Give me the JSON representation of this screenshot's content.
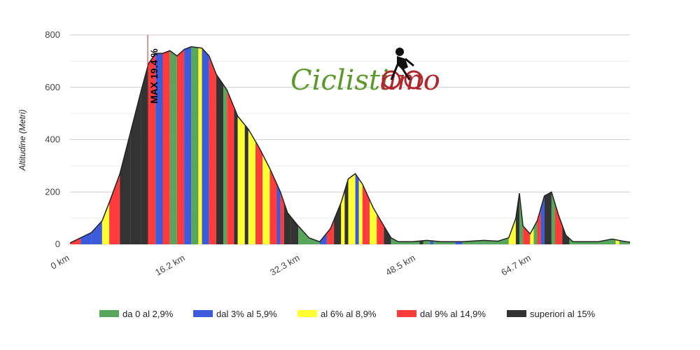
{
  "chart_data": {
    "type": "area",
    "title": "",
    "ylabel": "Altitudine (Metri)",
    "xlabel": "",
    "xlim": [
      0,
      78.5
    ],
    "ylim": [
      0,
      800
    ],
    "y_ticks": [
      0,
      200,
      400,
      600,
      800
    ],
    "x_ticks": [
      {
        "value": 0,
        "label": "0 km"
      },
      {
        "value": 16.2,
        "label": "16.2 km"
      },
      {
        "value": 32.3,
        "label": "32.3 km"
      },
      {
        "value": 48.5,
        "label": "48.5 km"
      },
      {
        "value": 64.7,
        "label": "64.7 km"
      }
    ],
    "grid": true,
    "legend_position": "bottom",
    "legend": [
      {
        "label": "da 0 al 2,9%",
        "color": "#58a55c"
      },
      {
        "label": "dal 3% al 5,9%",
        "color": "#3b5bdb"
      },
      {
        "label": "al 6% al 8,9%",
        "color": "#ffff33"
      },
      {
        "label": "dal 9% al 14,9%",
        "color": "#ff3b3b"
      },
      {
        "label": "superiori al 15%",
        "color": "#333333"
      }
    ],
    "annotation": {
      "label": "MAX 19.4 %",
      "x": 10.9
    },
    "profile": [
      [
        0,
        5
      ],
      [
        1.5,
        25
      ],
      [
        3,
        45
      ],
      [
        4.5,
        90
      ],
      [
        5.5,
        160
      ],
      [
        7,
        270
      ],
      [
        8.5,
        430
      ],
      [
        10,
        590
      ],
      [
        11,
        690
      ],
      [
        12,
        730
      ],
      [
        13,
        730
      ],
      [
        14,
        740
      ],
      [
        15,
        720
      ],
      [
        16,
        745
      ],
      [
        17,
        755
      ],
      [
        18.5,
        750
      ],
      [
        19.5,
        720
      ],
      [
        20.5,
        650
      ],
      [
        22,
        590
      ],
      [
        23.5,
        490
      ],
      [
        25,
        440
      ],
      [
        26.5,
        370
      ],
      [
        28,
        290
      ],
      [
        29.5,
        200
      ],
      [
        30.5,
        120
      ],
      [
        32,
        70
      ],
      [
        33.5,
        25
      ],
      [
        35,
        10
      ],
      [
        36.5,
        60
      ],
      [
        38,
        160
      ],
      [
        39,
        250
      ],
      [
        40,
        270
      ],
      [
        41,
        230
      ],
      [
        42.5,
        140
      ],
      [
        44,
        70
      ],
      [
        45,
        25
      ],
      [
        46,
        10
      ],
      [
        48,
        10
      ],
      [
        50,
        15
      ],
      [
        52,
        10
      ],
      [
        55,
        10
      ],
      [
        58,
        15
      ],
      [
        60,
        12
      ],
      [
        61.5,
        25
      ],
      [
        62.5,
        100
      ],
      [
        63,
        195
      ],
      [
        63.5,
        70
      ],
      [
        64.5,
        40
      ],
      [
        65.5,
        90
      ],
      [
        66.5,
        185
      ],
      [
        67.5,
        200
      ],
      [
        68.5,
        110
      ],
      [
        69.5,
        35
      ],
      [
        70.5,
        10
      ],
      [
        74,
        10
      ],
      [
        76,
        20
      ],
      [
        77.5,
        12
      ],
      [
        78.5,
        8
      ]
    ],
    "gradient_bands": [
      [
        0,
        3
      ],
      [
        1.5,
        1
      ],
      [
        3,
        1
      ],
      [
        4.5,
        2
      ],
      [
        5.5,
        3
      ],
      [
        7,
        4
      ],
      [
        8.5,
        4
      ],
      [
        10,
        4
      ],
      [
        11,
        3
      ],
      [
        12,
        1
      ],
      [
        13,
        3
      ],
      [
        14,
        0
      ],
      [
        15,
        3
      ],
      [
        16,
        1
      ],
      [
        17,
        0
      ],
      [
        18,
        2
      ],
      [
        18.5,
        1
      ],
      [
        19.5,
        3
      ],
      [
        20.5,
        4
      ],
      [
        21.5,
        0
      ],
      [
        22,
        3
      ],
      [
        23,
        4
      ],
      [
        23.5,
        2
      ],
      [
        24.5,
        4
      ],
      [
        25,
        2
      ],
      [
        26,
        3
      ],
      [
        27,
        2
      ],
      [
        28,
        3
      ],
      [
        29,
        1
      ],
      [
        29.5,
        3
      ],
      [
        30,
        4
      ],
      [
        31,
        4
      ],
      [
        32,
        0
      ],
      [
        33.5,
        0
      ],
      [
        35,
        1
      ],
      [
        36,
        3
      ],
      [
        37,
        4
      ],
      [
        38,
        2
      ],
      [
        38.5,
        4
      ],
      [
        39,
        2
      ],
      [
        40,
        1
      ],
      [
        40.5,
        2
      ],
      [
        41,
        3
      ],
      [
        42,
        2
      ],
      [
        43,
        3
      ],
      [
        44,
        4
      ],
      [
        45,
        0
      ],
      [
        49,
        4
      ],
      [
        49.5,
        0
      ],
      [
        50.5,
        1
      ],
      [
        51,
        0
      ],
      [
        54,
        1
      ],
      [
        55,
        0
      ],
      [
        60,
        0
      ],
      [
        61.5,
        2
      ],
      [
        62.5,
        4
      ],
      [
        63,
        0
      ],
      [
        63.5,
        3
      ],
      [
        64.5,
        2
      ],
      [
        65,
        0
      ],
      [
        65.5,
        3
      ],
      [
        66,
        1
      ],
      [
        66.5,
        4
      ],
      [
        67.5,
        0
      ],
      [
        68,
        3
      ],
      [
        69,
        4
      ],
      [
        70,
        0
      ],
      [
        76.5,
        2
      ],
      [
        77,
        0
      ]
    ]
  },
  "logo": {
    "text_main": "Ciclisti",
    "text_accent": "amo"
  }
}
